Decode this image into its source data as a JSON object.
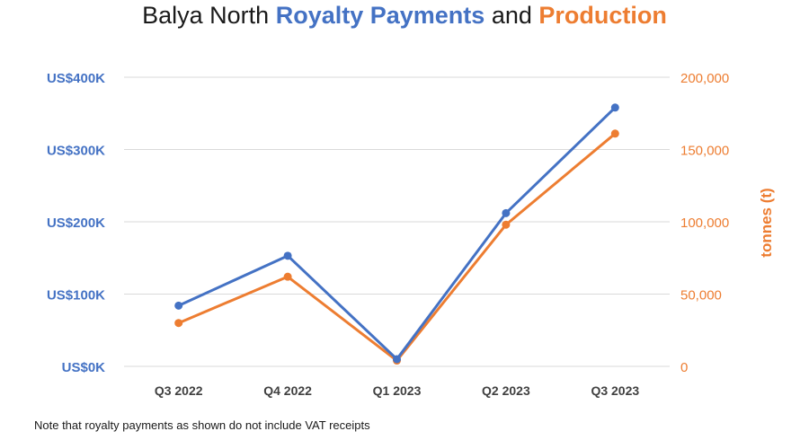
{
  "title": {
    "prefix": "Balya North ",
    "part1": "Royalty Payments",
    "middle": " and ",
    "part2": "Production"
  },
  "note": "Note that royalty payments as shown do not include VAT receipts",
  "chart_data": {
    "type": "line",
    "title": "Balya North Royalty Payments and Production",
    "categories": [
      "Q3 2022",
      "Q4 2022",
      "Q1 2023",
      "Q2 2023",
      "Q3 2023"
    ],
    "series": [
      {
        "axis": "left",
        "color": "#4472C4",
        "values": [
          84,
          153,
          10,
          212,
          358
        ]
      },
      {
        "axis": "right",
        "color": "#ED7D31",
        "values": [
          30000,
          62000,
          4000,
          98000,
          161000
        ]
      }
    ],
    "y_left": {
      "ylim": [
        0,
        400
      ],
      "ticks": [
        0,
        100,
        200,
        300,
        400
      ],
      "tick_labels": [
        "US$0K",
        "US$100K",
        "US$200K",
        "US$300K",
        "US$400K"
      ],
      "label": "",
      "color": "#4472C4"
    },
    "y_right": {
      "ylim": [
        0,
        200000
      ],
      "ticks": [
        0,
        50000,
        100000,
        150000,
        200000
      ],
      "tick_labels": [
        "0",
        "50,000",
        "100,000",
        "150,000",
        "200,000"
      ],
      "label": "tonnes (t)",
      "color": "#ED7D31"
    },
    "grid": true,
    "legend": "none"
  }
}
